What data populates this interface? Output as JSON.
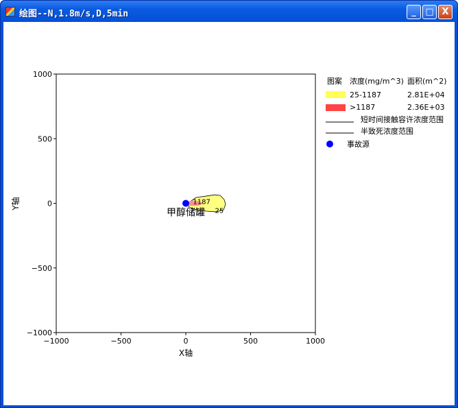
{
  "window": {
    "title": "绘图--N,1.8m/s,D,5min",
    "minimize": "_",
    "maximize": "□",
    "close": "X"
  },
  "legend": {
    "headers": [
      "图案",
      "浓度(mg/m^3)",
      "面积(m^2)"
    ],
    "rows": [
      {
        "color": "#ffff55",
        "range": "25-1187",
        "area": "2.81E+04"
      },
      {
        "color": "#ff4444",
        "range": ">1187",
        "area": "2.36E+03"
      }
    ],
    "lines": [
      "短时间接触容许浓度范围",
      "半致死浓度范围"
    ],
    "source": {
      "color": "#0000ff",
      "label": "事故源"
    }
  },
  "chart_data": {
    "type": "area",
    "xlabel": "X轴",
    "ylabel": "Y轴",
    "xlim": [
      -1000,
      1000
    ],
    "ylim": [
      -1000,
      1000
    ],
    "xticks": [
      "−1000",
      "−500",
      "0",
      "500",
      "1000"
    ],
    "yticks": [
      "1000",
      "500",
      "0",
      "−500",
      "−1000"
    ],
    "grid": false,
    "contours": [
      {
        "level": "25",
        "color": "#ffff80",
        "points": [
          [
            11,
            -3
          ],
          [
            79,
            45
          ],
          [
            159,
            56
          ],
          [
            222,
            66
          ],
          [
            265,
            61
          ],
          [
            296,
            29
          ],
          [
            307,
            -8
          ],
          [
            291,
            -50
          ],
          [
            238,
            -66
          ],
          [
            159,
            -61
          ],
          [
            79,
            -50
          ],
          [
            26,
            -29
          ]
        ]
      },
      {
        "level": "1187",
        "color": "#ff9090",
        "points": [
          [
            26,
            19
          ],
          [
            95,
            19
          ],
          [
            138,
            0
          ],
          [
            95,
            -19
          ],
          [
            26,
            -19
          ]
        ]
      }
    ],
    "source": {
      "x": 0,
      "y": 0,
      "label": "甲醇储罐"
    },
    "annotations": [
      {
        "text": "1187",
        "x": 55,
        "y": -5
      },
      {
        "text": "25",
        "x": 225,
        "y": -75
      }
    ]
  }
}
